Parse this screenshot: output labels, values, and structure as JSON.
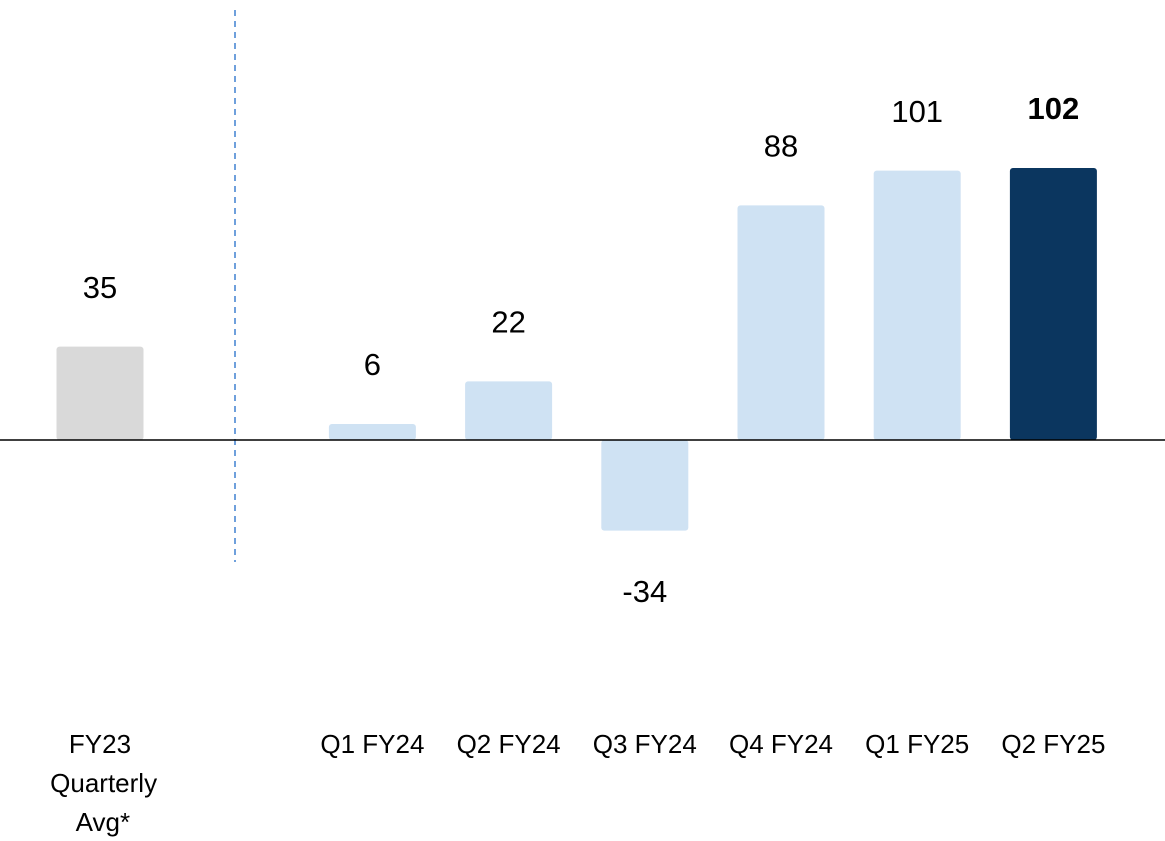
{
  "chart_data": {
    "type": "bar",
    "categories": [
      "FY23 Quarterly Avg*",
      "Q1 FY24",
      "Q2 FY24",
      "Q3 FY24",
      "Q4 FY24",
      "Q1 FY25",
      "Q2 FY25"
    ],
    "values": [
      35,
      6,
      22,
      -34,
      88,
      101,
      102
    ],
    "colors": [
      "#d9d9d9",
      "#cfe2f3",
      "#cfe2f3",
      "#cfe2f3",
      "#cfe2f3",
      "#cfe2f3",
      "#0b365f"
    ],
    "ylim": [
      -75,
      150
    ]
  }
}
